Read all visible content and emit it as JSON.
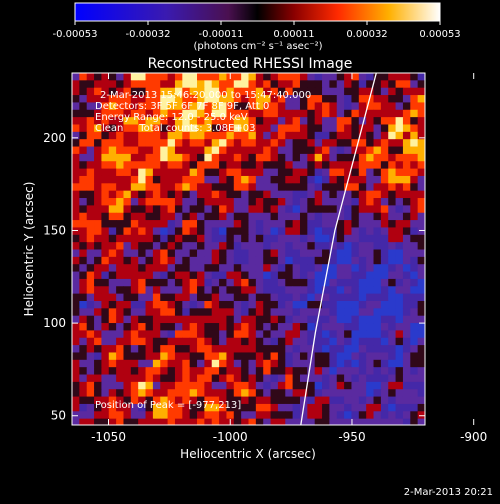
{
  "colorbar": {
    "ticks": [
      "-0.00053",
      "-0.00032",
      "-0.00011",
      "0.00011",
      "0.00032",
      "0.00053"
    ],
    "unit_label": "(photons cm⁻² s⁻¹ asec⁻²)"
  },
  "title": "Reconstructed RHESSI Image",
  "info": {
    "line1": "2-Mar-2013 15:46:20.000 to 15:47:40.000",
    "line2": "Detectors: 3F 5F 6F 7F 8F 9F, Att 0",
    "line3": "Energy Range: 12.0 - 25.0 keV",
    "line4": "Clean     Total counts: 3.08E+03"
  },
  "peak_label": "Position of Peak = [-977,213]",
  "footer_date": "2-Mar-2013 20:21",
  "chart_data": {
    "type": "heatmap",
    "xlabel": "Heliocentric X (arcsec)",
    "ylabel": "Heliocentric Y (arcsec)",
    "xlim": [
      -1065,
      -920
    ],
    "ylim": [
      45,
      235
    ],
    "x_ticks": [
      -1050,
      -1000,
      -950,
      -900
    ],
    "y_ticks": [
      50,
      100,
      150,
      200
    ],
    "x_tick_labels": [
      "-1050",
      "-1000",
      "-950",
      "-900"
    ],
    "y_tick_labels": [
      "50",
      "100",
      "150",
      "200"
    ],
    "colorbar_range": [
      -0.00053,
      0.00053
    ],
    "limb_line": [
      [
        -971,
        45
      ],
      [
        -965,
        95
      ],
      [
        -957,
        150
      ],
      [
        -947,
        200
      ],
      [
        -940,
        235
      ]
    ],
    "peak": [
      -977,
      213
    ],
    "colors": {
      "low": "#3050ff",
      "mid": "#6a2aa8",
      "high": "#ff3a00",
      "max": "#ffffff"
    }
  }
}
